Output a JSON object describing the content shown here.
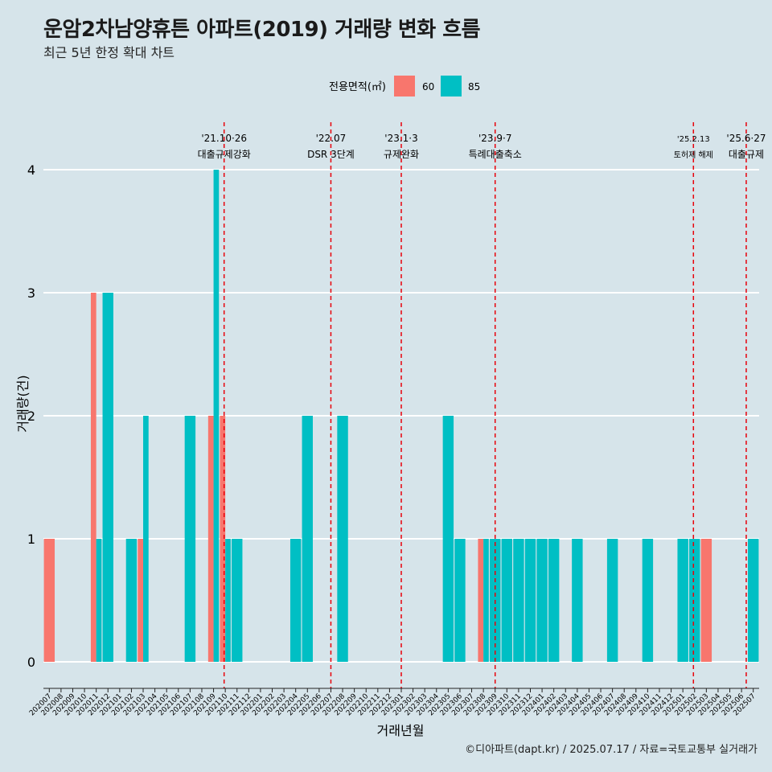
{
  "title": "운암2차남양휴튼 아파트(2019) 거래량 변화 흐름",
  "subtitle": "최근 5년 한정 확대 차트",
  "caption": "©디아파트(dapt.kr) / 2025.07.17 / 자료=국토교통부 실거래가",
  "colors": {
    "background": "#d6e4ea",
    "s60": "#f8766d",
    "s85": "#00bfc4",
    "event": "#e8000b",
    "grid": "#ffffff"
  },
  "chart_data": {
    "type": "bar",
    "xlabel": "거래년월",
    "ylabel": "거래량(건)",
    "ylim": [
      0,
      4
    ],
    "yticks": [
      0,
      1,
      2,
      3,
      4
    ],
    "grid": true,
    "legend": {
      "title": "전용면적(㎡)",
      "position": "top"
    },
    "categories": [
      "202007",
      "202008",
      "202009",
      "202010",
      "202011",
      "202012",
      "202101",
      "202102",
      "202103",
      "202104",
      "202105",
      "202106",
      "202107",
      "202108",
      "202109",
      "202110",
      "202111",
      "202112",
      "202201",
      "202202",
      "202203",
      "202204",
      "202205",
      "202206",
      "202207",
      "202208",
      "202209",
      "202210",
      "202211",
      "202212",
      "202301",
      "202302",
      "202303",
      "202304",
      "202305",
      "202306",
      "202307",
      "202308",
      "202309",
      "202310",
      "202311",
      "202312",
      "202401",
      "202402",
      "202403",
      "202404",
      "202405",
      "202406",
      "202407",
      "202408",
      "202409",
      "202410",
      "202411",
      "202412",
      "202501",
      "202502",
      "202503",
      "202504",
      "202505",
      "202506",
      "202507"
    ],
    "series": [
      {
        "name": "60",
        "color": "#f8766d",
        "values": [
          1,
          0,
          0,
          0,
          3,
          0,
          0,
          0,
          1,
          0,
          0,
          0,
          0,
          0,
          2,
          2,
          0,
          0,
          0,
          0,
          0,
          0,
          0,
          0,
          0,
          0,
          0,
          0,
          0,
          0,
          0,
          0,
          0,
          0,
          0,
          0,
          0,
          1,
          0,
          0,
          0,
          0,
          0,
          0,
          0,
          0,
          0,
          0,
          0,
          0,
          0,
          0,
          0,
          0,
          0,
          0,
          1,
          0,
          0,
          0,
          0
        ]
      },
      {
        "name": "85",
        "color": "#00bfc4",
        "values": [
          0,
          0,
          0,
          0,
          1,
          3,
          0,
          1,
          2,
          0,
          0,
          0,
          2,
          0,
          4,
          1,
          1,
          0,
          0,
          0,
          0,
          1,
          2,
          0,
          0,
          2,
          0,
          0,
          0,
          0,
          0,
          0,
          0,
          0,
          2,
          1,
          0,
          1,
          1,
          1,
          1,
          1,
          1,
          1,
          0,
          1,
          0,
          0,
          1,
          0,
          0,
          1,
          0,
          0,
          1,
          1,
          0,
          0,
          0,
          0,
          1
        ]
      }
    ],
    "events": [
      {
        "date": "'21.10·26",
        "label": "대출규제강화",
        "pos": 15.4,
        "small": false
      },
      {
        "date": "'22.07",
        "label": "DSR 3단계",
        "pos": 24.5,
        "small": false
      },
      {
        "date": "'23.1·3",
        "label": "규제완화",
        "pos": 30.5,
        "small": false
      },
      {
        "date": "'23.9·7",
        "label": "특례대출축소",
        "pos": 38.5,
        "small": false
      },
      {
        "date": "'25.2.13",
        "label": "토허제 해제",
        "pos": 55.4,
        "small": true
      },
      {
        "date": "'25.6·27",
        "label": "대출규제",
        "pos": 59.9,
        "small": false
      }
    ]
  }
}
